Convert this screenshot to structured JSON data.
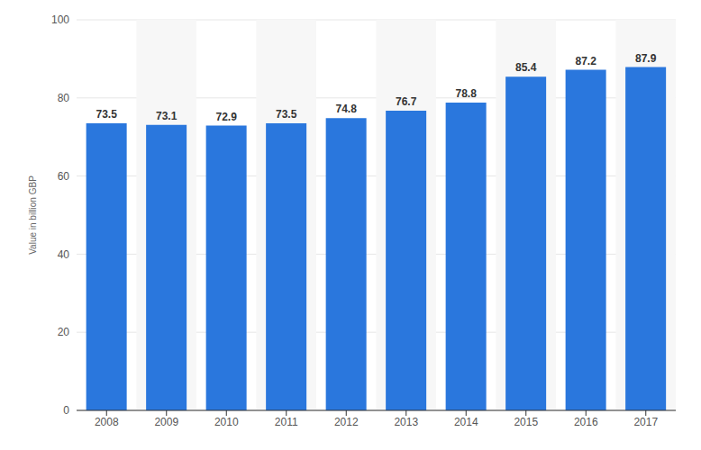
{
  "chart_data": {
    "type": "bar",
    "categories": [
      "2008",
      "2009",
      "2010",
      "2011",
      "2012",
      "2013",
      "2014",
      "2015",
      "2016",
      "2017"
    ],
    "values": [
      73.5,
      73.1,
      72.9,
      73.5,
      74.8,
      76.7,
      78.8,
      85.4,
      87.2,
      87.9
    ],
    "color": "#2a77dd",
    "ylabel": "Value in billion GBP",
    "ylim": [
      0,
      100
    ],
    "yticks": [
      0,
      20,
      40,
      60,
      80,
      100
    ],
    "grid": true,
    "data_labels": true
  }
}
